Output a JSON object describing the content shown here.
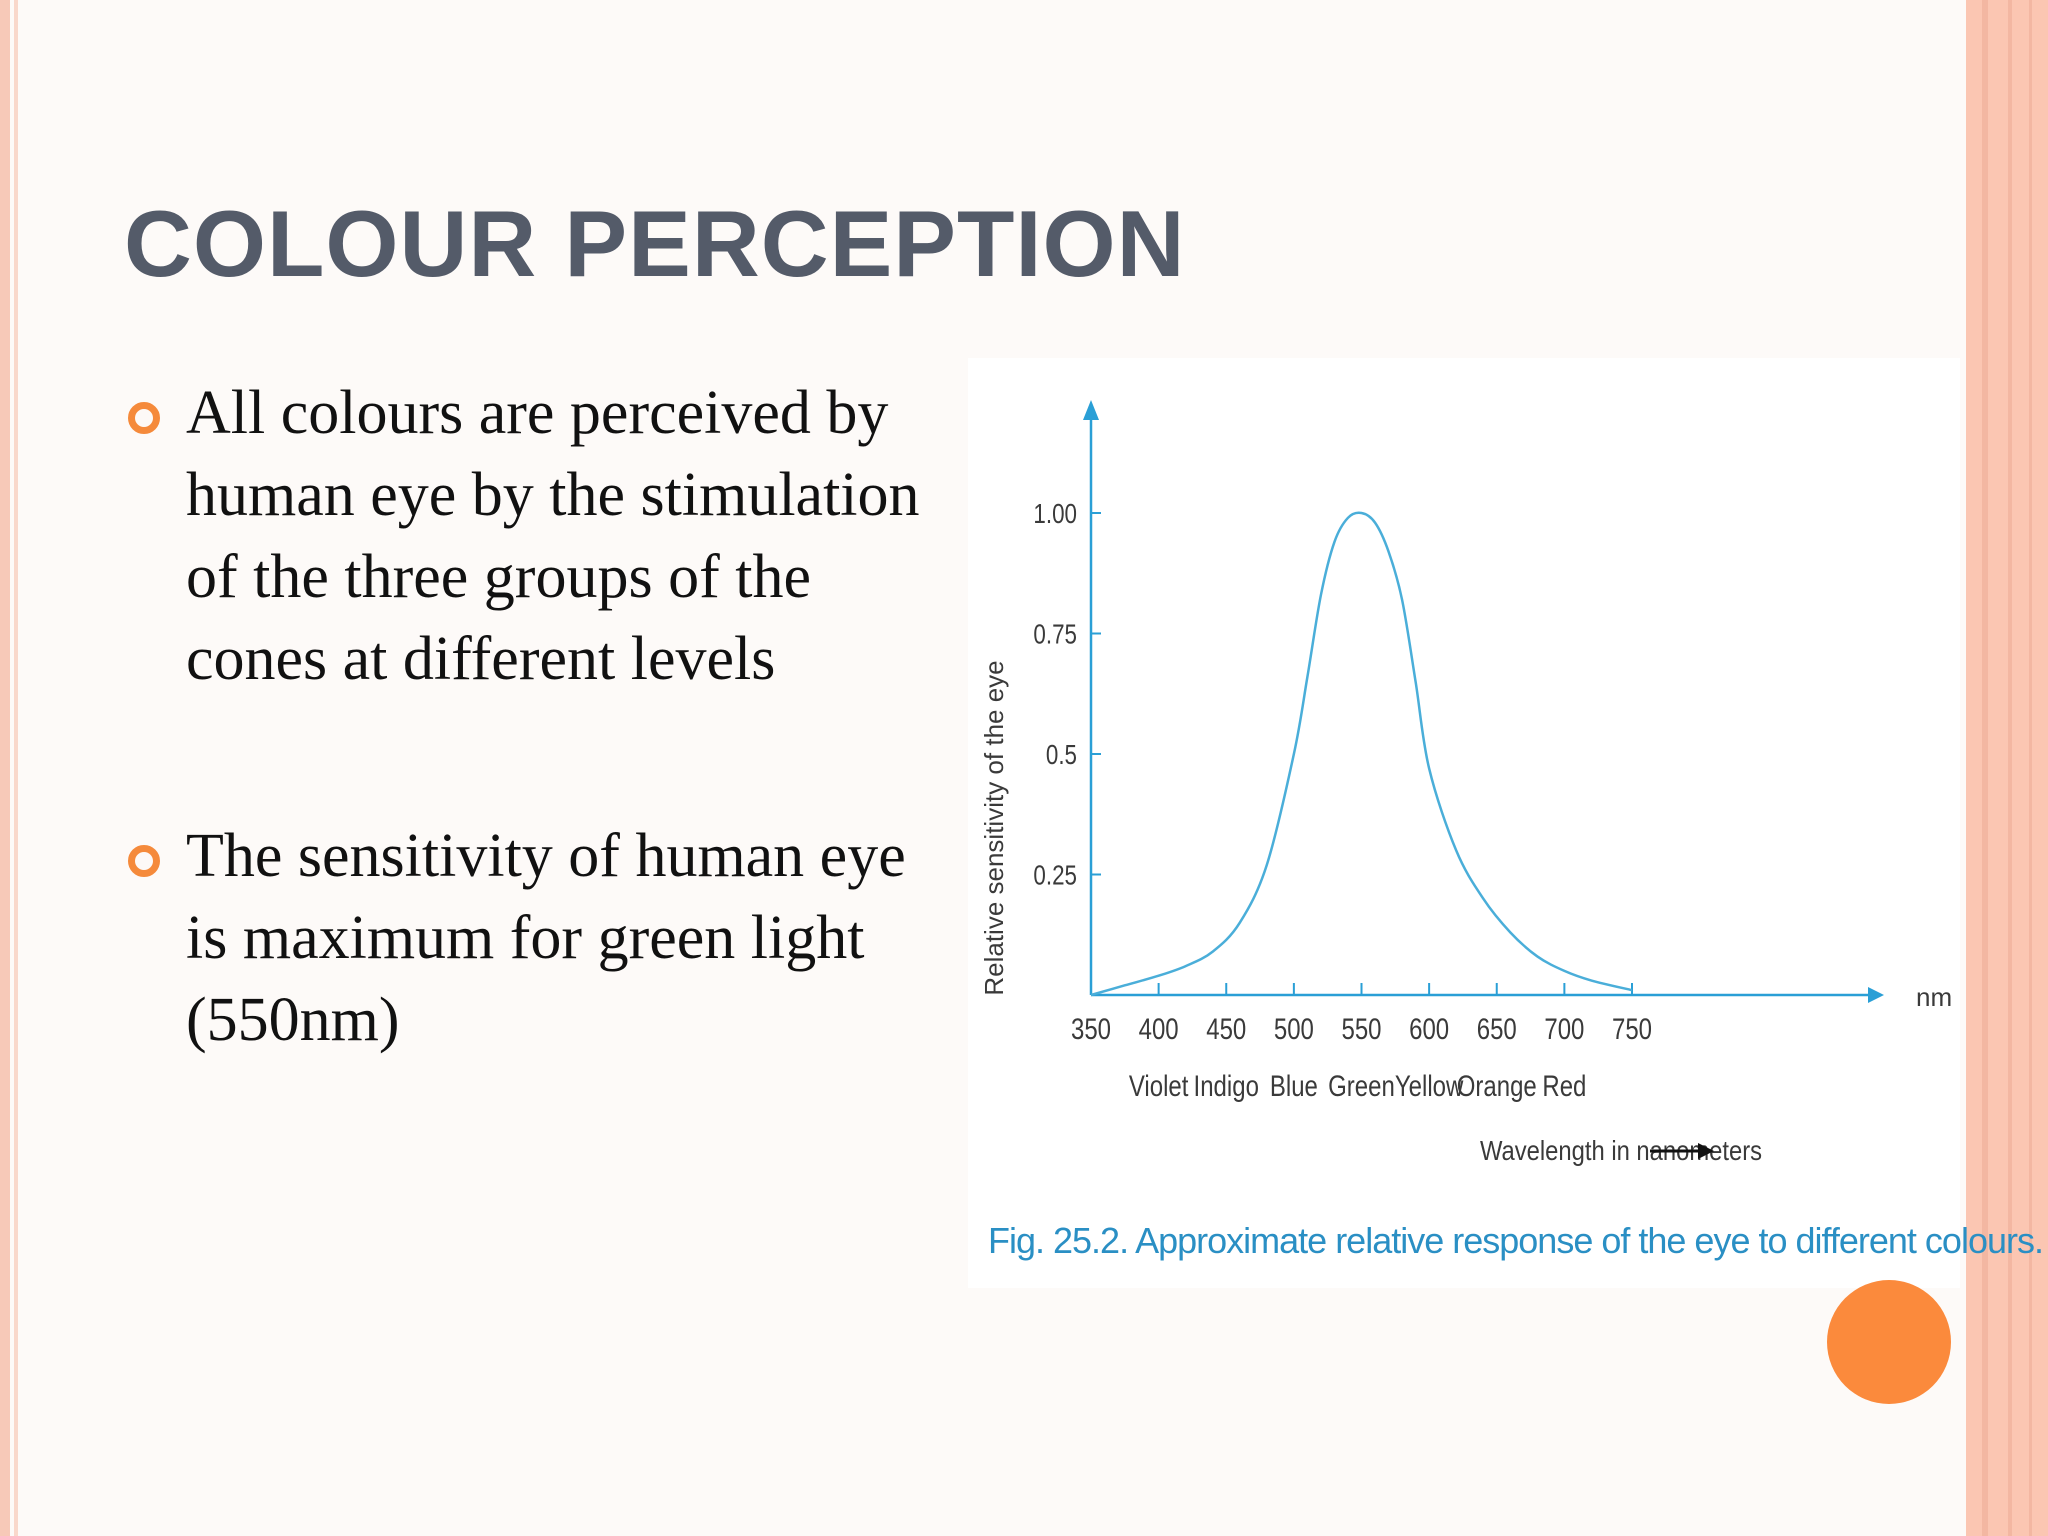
{
  "slide": {
    "title": "COLOUR PERCEPTION",
    "bullets": [
      "All colours are perceived by human eye by the stimulation of the three groups of the cones at different levels",
      "The sensitivity of human eye is maximum for green light (550nm)"
    ]
  },
  "figure": {
    "caption": "Fig. 25.2. Approximate relative response of the eye to different colours.",
    "x_unit": "nm",
    "x_axis_title": "Wavelength in nanometers",
    "colour_labels": [
      "Violet",
      "Indigo",
      "Blue",
      "Green",
      "Yellow",
      "Orange",
      "Red"
    ],
    "colors": {
      "curve": "#4aaed9",
      "axis": "#2a9fd6",
      "text": "#3a3a3a"
    }
  },
  "chart_data": {
    "type": "line",
    "ylabel": "Relative sensitivity of the eye",
    "xlabel": "Wavelength in nanometers",
    "xlim": [
      350,
      750
    ],
    "ylim": [
      0,
      1.0
    ],
    "x_ticks": [
      "350",
      "400",
      "450",
      "500",
      "550",
      "600",
      "650",
      "700",
      "750"
    ],
    "y_ticks": [
      "0.25",
      "0.5",
      "0.75",
      "1.00"
    ],
    "y_tick_values": [
      0.25,
      0.5,
      0.75,
      1.0
    ],
    "series": [
      {
        "x": [
          350,
          375,
          400,
          420,
          440,
          460,
          480,
          500,
          510,
          520,
          530,
          540,
          550,
          560,
          570,
          580,
          590,
          600,
          620,
          640,
          660,
          680,
          700,
          720,
          750
        ],
        "y": [
          0.0,
          0.02,
          0.04,
          0.06,
          0.09,
          0.15,
          0.27,
          0.5,
          0.66,
          0.83,
          0.94,
          0.99,
          1.0,
          0.98,
          0.92,
          0.82,
          0.65,
          0.47,
          0.3,
          0.2,
          0.13,
          0.08,
          0.05,
          0.03,
          0.01
        ]
      }
    ],
    "grid": false,
    "legend": "none"
  }
}
